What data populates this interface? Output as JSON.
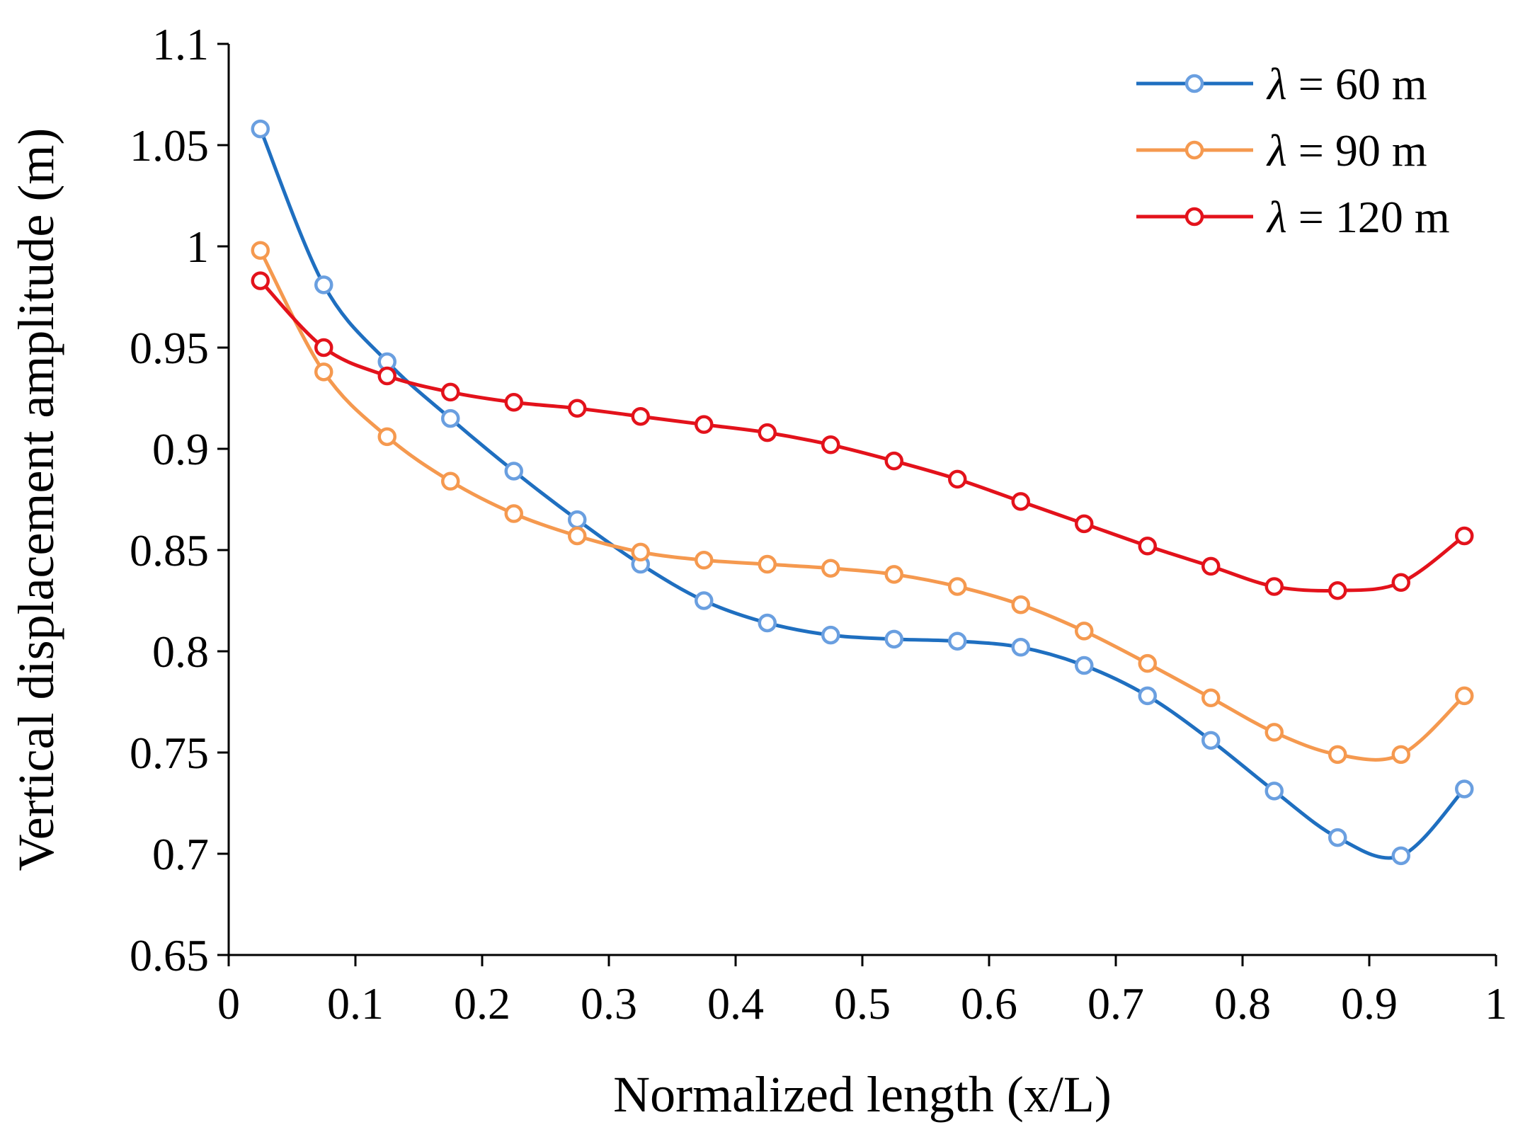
{
  "chart_data": {
    "type": "line",
    "title": "",
    "xlabel": "Normalized length (x/L)",
    "ylabel": "Vertical displacement amplitude (m)",
    "xlim": [
      0,
      1
    ],
    "ylim": [
      0.65,
      1.1
    ],
    "x_ticks": [
      0,
      0.1,
      0.2,
      0.3,
      0.4,
      0.5,
      0.6,
      0.7,
      0.8,
      0.9,
      1
    ],
    "x_tick_labels": [
      "0",
      "0.1",
      "0.2",
      "0.3",
      "0.4",
      "0.5",
      "0.6",
      "0.7",
      "0.8",
      "0.9",
      "1"
    ],
    "y_ticks": [
      0.65,
      0.7,
      0.75,
      0.8,
      0.85,
      0.9,
      0.95,
      1.0,
      1.05,
      1.1
    ],
    "y_tick_labels": [
      "0.65",
      "0.7",
      "0.75",
      "0.8",
      "0.85",
      "0.9",
      "0.95",
      "1",
      "1.05",
      "1.1"
    ],
    "grid": false,
    "legend_position": "top-right",
    "x": [
      0.025,
      0.075,
      0.125,
      0.175,
      0.225,
      0.275,
      0.325,
      0.375,
      0.425,
      0.475,
      0.525,
      0.575,
      0.625,
      0.675,
      0.725,
      0.775,
      0.825,
      0.875,
      0.925,
      0.975
    ],
    "series": [
      {
        "name": "λ = 60 m",
        "symbol": "λ",
        "label_rest": " = 60 m",
        "color": "#1f6fc0",
        "marker_color": "#6a9fe0",
        "values": [
          1.058,
          0.981,
          0.943,
          0.915,
          0.889,
          0.865,
          0.843,
          0.825,
          0.814,
          0.808,
          0.806,
          0.805,
          0.802,
          0.793,
          0.778,
          0.756,
          0.731,
          0.708,
          0.699,
          0.732
        ]
      },
      {
        "name": "λ = 90 m",
        "symbol": "λ",
        "label_rest": " = 90 m",
        "color": "#f5994f",
        "marker_color": "#f5994f",
        "values": [
          0.998,
          0.938,
          0.906,
          0.884,
          0.868,
          0.857,
          0.849,
          0.845,
          0.843,
          0.841,
          0.838,
          0.832,
          0.823,
          0.81,
          0.794,
          0.777,
          0.76,
          0.749,
          0.749,
          0.778
        ]
      },
      {
        "name": "λ = 120 m",
        "symbol": "λ",
        "label_rest": " = 120 m",
        "color": "#e3121b",
        "marker_color": "#e3121b",
        "values": [
          0.983,
          0.95,
          0.936,
          0.928,
          0.923,
          0.92,
          0.916,
          0.912,
          0.908,
          0.902,
          0.894,
          0.885,
          0.874,
          0.863,
          0.852,
          0.842,
          0.832,
          0.83,
          0.834,
          0.857
        ]
      }
    ]
  }
}
